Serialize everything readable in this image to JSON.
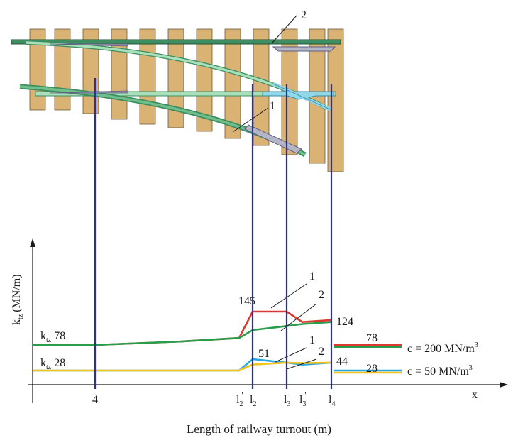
{
  "title": "Length of railway turnout (m)",
  "colors": {
    "sleeper": "#d9b274",
    "sleeper_stroke": "#6b5a3a",
    "rail_dark": "#3f8d62",
    "rail_light": "#a8e0b9",
    "rail_cyan": "#8fd8e8",
    "switch_plate": "#9b9bb6",
    "vertical": "#2e2e9a",
    "series_red": "#d83a2f",
    "series_green": "#2a9d4a",
    "series_yellow": "#f3c51e",
    "series_blue": "#27a6df"
  },
  "labels": {
    "drawing_label_2": "2",
    "drawing_label_1": "1",
    "y_axis_main": "k",
    "y_axis_sub": "tz",
    "y_axis_units": "(MN/m)",
    "x_axis": "x"
  },
  "chart_data": {
    "type": "line",
    "xlabel": "Length of railway turnout (m)",
    "ylabel": "k_tz (MN/m)",
    "x_ticks": [
      {
        "pos": 0.0,
        "main": "4",
        "sup": "",
        "sub": ""
      },
      {
        "pos": 1.0,
        "main": "l",
        "sup": "'",
        "sub": "2"
      },
      {
        "pos": 1.1,
        "main": "l",
        "sup": "",
        "sub": "2"
      },
      {
        "pos": 1.48,
        "main": "l",
        "sup": "",
        "sub": "3"
      },
      {
        "pos": 1.7,
        "main": "l",
        "sup": "'",
        "sub": "3"
      },
      {
        "pos": 1.9,
        "main": "l",
        "sup": "",
        "sub": "4"
      }
    ],
    "regions": [
      {
        "name": "c = 200 MN/m",
        "name_sup": "3",
        "start_label_main": "k",
        "start_label_sub": "tz",
        "start_value": "78",
        "value_labels": [
          "145",
          "124",
          "78"
        ],
        "branch_labels": [
          "1",
          "2"
        ],
        "series": [
          {
            "name": "1",
            "color": "#d83a2f",
            "points": [
              [
                0,
                78
              ],
              [
                0.6,
                85
              ],
              [
                1.0,
                92
              ],
              [
                1.1,
                145
              ],
              [
                1.48,
                145
              ],
              [
                1.7,
                124
              ],
              [
                1.9,
                128
              ],
              [
                2.2,
                78
              ],
              [
                2.7,
                78
              ]
            ]
          },
          {
            "name": "2",
            "color": "#2a9d4a",
            "points": [
              [
                0,
                78
              ],
              [
                0.6,
                85
              ],
              [
                1.0,
                92
              ],
              [
                1.1,
                108
              ],
              [
                1.48,
                116
              ],
              [
                1.7,
                120
              ],
              [
                1.9,
                124
              ],
              [
                2.2,
                78
              ],
              [
                2.7,
                78
              ]
            ]
          }
        ]
      },
      {
        "name": "c = 50 MN/m",
        "name_sup": "3",
        "start_label_main": "k",
        "start_label_sub": "tz",
        "start_value": "28",
        "value_labels": [
          "51",
          "44",
          "28"
        ],
        "branch_labels": [
          "1",
          "2"
        ],
        "series": [
          {
            "name": "1",
            "color": "#27a6df",
            "points": [
              [
                0,
                28
              ],
              [
                0.6,
                28
              ],
              [
                1.0,
                28
              ],
              [
                1.1,
                51
              ],
              [
                1.48,
                44
              ],
              [
                1.7,
                40
              ],
              [
                1.9,
                44
              ],
              [
                2.2,
                28
              ],
              [
                2.7,
                28
              ]
            ]
          },
          {
            "name": "2",
            "color": "#f3c51e",
            "points": [
              [
                0,
                28
              ],
              [
                0.6,
                28
              ],
              [
                1.0,
                28
              ],
              [
                1.1,
                40
              ],
              [
                1.48,
                44
              ],
              [
                1.7,
                43
              ],
              [
                1.9,
                44
              ],
              [
                2.2,
                28
              ],
              [
                2.7,
                28
              ]
            ]
          }
        ]
      }
    ]
  }
}
